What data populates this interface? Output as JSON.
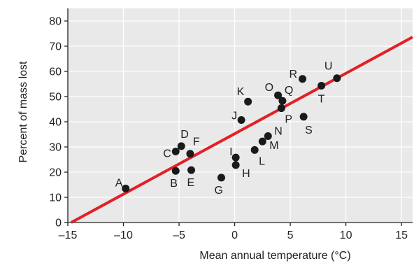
{
  "chart_data": {
    "type": "scatter",
    "xlabel": "Mean annual temperature (°C)",
    "ylabel": "Percent of mass lost",
    "xlim": [
      -15,
      16
    ],
    "ylim": [
      0,
      85
    ],
    "xticks": [
      -15,
      -10,
      -5,
      0,
      5,
      10,
      15
    ],
    "xtick_labels": [
      "–15",
      "–10",
      "–5",
      "0",
      "5",
      "10",
      "15"
    ],
    "yticks": [
      0,
      10,
      20,
      30,
      40,
      50,
      60,
      70,
      80
    ],
    "ytick_labels": [
      "0",
      "10",
      "20",
      "30",
      "40",
      "50",
      "60",
      "70",
      "80"
    ],
    "grid": true,
    "colors": {
      "background": "#e9e9e9",
      "grid": "#ffffff",
      "points": "#1a1a1a",
      "trendline": "#e32026"
    },
    "points": [
      {
        "label": "A",
        "x": -9.8,
        "y": 13.5
      },
      {
        "label": "B",
        "x": -5.3,
        "y": 20.5
      },
      {
        "label": "C",
        "x": -5.3,
        "y": 28.2
      },
      {
        "label": "D",
        "x": -4.8,
        "y": 30.3
      },
      {
        "label": "E",
        "x": -3.9,
        "y": 20.8
      },
      {
        "label": "F",
        "x": -4.0,
        "y": 27.3
      },
      {
        "label": "G",
        "x": -1.2,
        "y": 17.8
      },
      {
        "label": "H",
        "x": 0.1,
        "y": 22.8
      },
      {
        "label": "I",
        "x": 0.1,
        "y": 25.8
      },
      {
        "label": "J",
        "x": 0.6,
        "y": 40.7
      },
      {
        "label": "K",
        "x": 1.2,
        "y": 48.0
      },
      {
        "label": "L",
        "x": 1.8,
        "y": 28.8
      },
      {
        "label": "M",
        "x": 2.5,
        "y": 32.2
      },
      {
        "label": "N",
        "x": 3.0,
        "y": 34.3
      },
      {
        "label": "O",
        "x": 3.9,
        "y": 50.5
      },
      {
        "label": "P",
        "x": 4.2,
        "y": 45.4
      },
      {
        "label": "Q",
        "x": 4.3,
        "y": 48.3
      },
      {
        "label": "R",
        "x": 6.1,
        "y": 57.0
      },
      {
        "label": "S",
        "x": 6.2,
        "y": 42.0
      },
      {
        "label": "T",
        "x": 7.8,
        "y": 54.3
      },
      {
        "label": "U",
        "x": 9.2,
        "y": 57.3
      }
    ],
    "trendline": {
      "x": [
        -14.7,
        16
      ],
      "y": [
        0,
        73.6
      ]
    }
  }
}
